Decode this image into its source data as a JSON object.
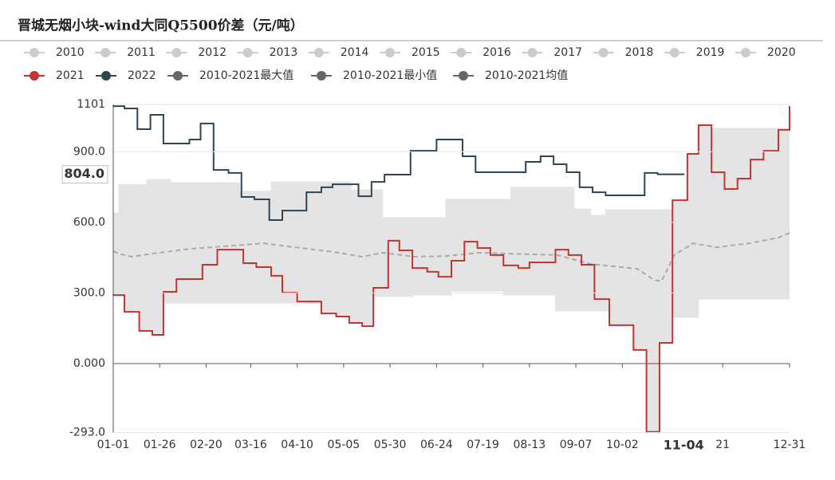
{
  "chart_data": {
    "type": "step",
    "title": "晋城无烟小块-wind大同Q5500价差（元/吨）",
    "inactive_legend": [
      "2010",
      "2011",
      "2012",
      "2013",
      "2014",
      "2015",
      "2016",
      "2017",
      "2018",
      "2019",
      "2020"
    ],
    "inactive_color": "#cccccc",
    "band_color": "#e4e4e4",
    "xlim": [
      0,
      364
    ],
    "xticks": [
      {
        "value": 0,
        "label": "01-01"
      },
      {
        "value": 25,
        "label": "01-26"
      },
      {
        "value": 50,
        "label": "02-20"
      },
      {
        "value": 74,
        "label": "03-16"
      },
      {
        "value": 99,
        "label": "04-10"
      },
      {
        "value": 124,
        "label": "05-05"
      },
      {
        "value": 149,
        "label": "05-30"
      },
      {
        "value": 174,
        "label": "06-24"
      },
      {
        "value": 199,
        "label": "07-19"
      },
      {
        "value": 224,
        "label": "08-13"
      },
      {
        "value": 249,
        "label": "09-07"
      },
      {
        "value": 274,
        "label": "10-02"
      },
      {
        "value": 328,
        "label": "21"
      },
      {
        "value": 364,
        "label": "12-31"
      }
    ],
    "ylim": [
      -293,
      1101
    ],
    "yticks": [
      1101,
      {
        "value": 900,
        "label": "900.0"
      },
      {
        "value": 600,
        "label": "600.0"
      },
      {
        "value": 300,
        "label": "300.0"
      },
      {
        "value": 0,
        "label": "0.000"
      },
      {
        "value": -293,
        "label": "-293.0"
      }
    ],
    "grid": true,
    "axis_pointer": {
      "x": {
        "value": 307,
        "label": "11-04"
      },
      "y": {
        "value": 804,
        "label": "804.0"
      }
    },
    "series": [
      {
        "name": "2021",
        "color": "#c23531",
        "style": "step",
        "x": [
          0,
          6,
          14,
          21,
          27,
          34,
          48,
          56,
          70,
          77,
          85,
          91,
          99,
          112,
          120,
          127,
          134,
          140,
          148,
          154,
          161,
          169,
          175,
          182,
          189,
          196,
          203,
          210,
          218,
          224,
          238,
          245,
          252,
          259,
          267,
          280,
          287,
          294,
          301,
          309,
          315,
          322,
          329,
          336,
          343,
          350,
          358,
          364
        ],
        "values": [
          291,
          220,
          139,
          122,
          305,
          359,
          420,
          484,
          427,
          410,
          373,
          301,
          264,
          213,
          200,
          173,
          159,
          322,
          522,
          481,
          406,
          390,
          369,
          437,
          518,
          491,
          461,
          417,
          406,
          430,
          484,
          461,
          420,
          274,
          163,
          58,
          -290,
          88,
          694,
          891,
          1013,
          813,
          742,
          786,
          867,
          904,
          993,
          1091
        ]
      },
      {
        "name": "2022",
        "color": "#2f4554",
        "style": "step",
        "x": [
          0,
          6,
          13,
          20,
          27,
          41,
          47,
          54,
          62,
          69,
          76,
          84,
          91,
          104,
          112,
          118,
          132,
          139,
          146,
          160,
          174,
          188,
          195,
          222,
          230,
          237,
          244,
          251,
          258,
          265,
          286,
          293,
          307
        ],
        "values": [
          1094,
          1084,
          996,
          1057,
          935,
          952,
          1020,
          823,
          810,
          708,
          698,
          610,
          650,
          728,
          749,
          762,
          711,
          772,
          803,
          904,
          952,
          881,
          813,
          857,
          881,
          847,
          813,
          749,
          728,
          715,
          810,
          804,
          804
        ]
      },
      {
        "name": "2010-2021最大值",
        "color": "#666666",
        "style": "band-upper",
        "x": [
          0,
          3,
          18,
          31,
          68,
          85,
          128,
          145,
          179,
          214,
          248,
          257,
          265,
          301,
          309,
          315,
          322,
          364
        ],
        "values": [
          640,
          760,
          782,
          769,
          732,
          772,
          738,
          620,
          698,
          749,
          657,
          630,
          654,
          694,
          891,
          1013,
          1000,
          1000
        ]
      },
      {
        "name": "2010-2021最小值",
        "color": "#666666",
        "style": "band-lower",
        "x": [
          0,
          6,
          14,
          21,
          27,
          112,
          120,
          127,
          134,
          140,
          161,
          182,
          210,
          238,
          267,
          280,
          287,
          294,
          301,
          315,
          364
        ],
        "values": [
          291,
          220,
          139,
          122,
          257,
          213,
          200,
          173,
          159,
          285,
          291,
          308,
          291,
          224,
          163,
          58,
          -290,
          88,
          196,
          274,
          274
        ]
      },
      {
        "name": "2010-2021均值",
        "color": "#666666",
        "style": "dashed",
        "x": [
          0,
          3,
          10,
          21,
          42,
          59,
          81,
          98,
          119,
          134,
          145,
          162,
          179,
          197,
          239,
          257,
          282,
          291,
          295,
          302,
          312,
          325,
          342,
          358,
          364
        ],
        "values": [
          478,
          467,
          454,
          467,
          488,
          498,
          511,
          494,
          474,
          454,
          471,
          454,
          457,
          471,
          461,
          423,
          403,
          356,
          349,
          461,
          511,
          494,
          511,
          535,
          555
        ]
      }
    ]
  }
}
